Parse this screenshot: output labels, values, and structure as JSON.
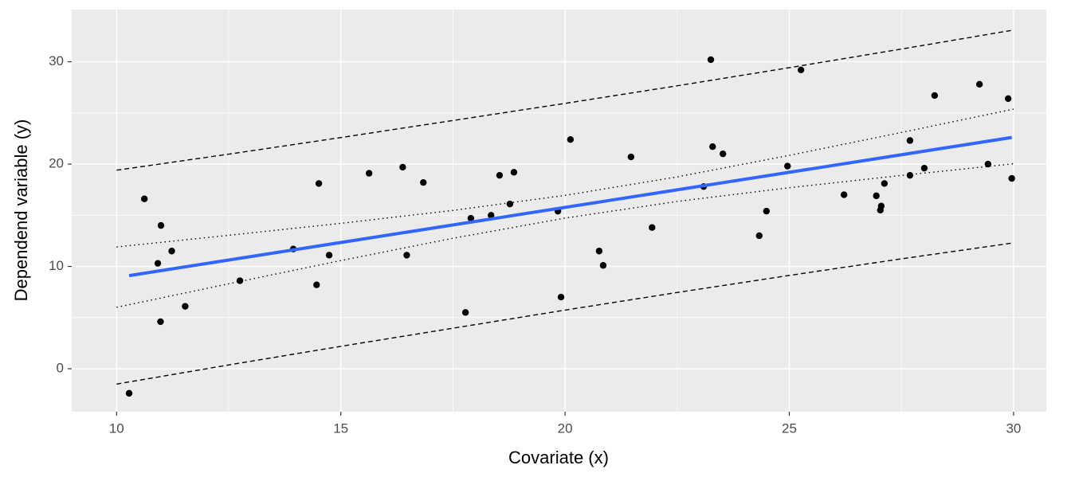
{
  "chart_data": {
    "type": "scatter",
    "x_label": "Covariate (x)",
    "y_label": "Dependend variable (y)",
    "xlim": [
      9.0,
      30.73
    ],
    "ylim": [
      -4.2,
      35.1
    ],
    "xticks": [
      10,
      15,
      20,
      25,
      30
    ],
    "yticks": [
      0,
      10,
      20,
      30
    ],
    "minor_xticks": [
      12.5,
      17.5,
      22.5,
      27.5
    ],
    "minor_yticks": [
      5,
      15,
      25
    ],
    "grid": true,
    "background": "#ebebeb",
    "color": "#000000",
    "x": [
      10.28,
      10.62,
      10.92,
      10.99,
      10.98,
      11.23,
      11.53,
      12.75,
      13.94,
      14.46,
      14.51,
      14.74,
      15.63,
      16.38,
      16.47,
      16.84,
      17.78,
      17.9,
      18.35,
      18.54,
      18.77,
      18.86,
      19.84,
      19.91,
      20.12,
      20.76,
      20.85,
      21.47,
      21.94,
      23.09,
      23.25,
      23.29,
      23.52,
      24.33,
      24.49,
      24.96,
      25.26,
      26.22,
      26.94,
      27.03,
      27.05,
      27.12,
      27.69,
      27.69,
      28.01,
      28.24,
      29.24,
      29.43,
      29.88,
      29.96
    ],
    "y": [
      -2.4,
      16.6,
      10.3,
      14.0,
      4.6,
      11.5,
      6.1,
      8.6,
      11.7,
      8.2,
      18.1,
      11.1,
      19.1,
      19.7,
      11.1,
      18.2,
      5.5,
      14.7,
      15.0,
      18.9,
      16.1,
      19.2,
      15.4,
      7.0,
      22.4,
      11.5,
      10.1,
      20.7,
      13.8,
      17.8,
      30.2,
      21.7,
      21.0,
      13.0,
      15.4,
      19.8,
      29.2,
      17.0,
      16.9,
      15.5,
      15.9,
      18.1,
      22.3,
      18.9,
      19.6,
      26.7,
      27.8,
      20.0,
      26.4,
      18.6
    ],
    "fit": {
      "x": [
        10.28,
        29.96
      ],
      "y": [
        9.1,
        22.6
      ],
      "color": "#3366ff"
    },
    "confidence_band": {
      "x": [
        10,
        12.5,
        15,
        17.5,
        20,
        22.5,
        25,
        27.5,
        30
      ],
      "upper": [
        11.9,
        13.04,
        14.21,
        15.47,
        16.94,
        18.75,
        20.85,
        23.09,
        25.37
      ],
      "lower": [
        6.0,
        8.3,
        10.57,
        12.75,
        14.72,
        16.35,
        17.69,
        18.89,
        20.03
      ]
    },
    "prediction_band": {
      "x": [
        10,
        12.5,
        15,
        17.5,
        20,
        22.5,
        25,
        27.5,
        30
      ],
      "upper": [
        19.4,
        20.97,
        22.59,
        24.26,
        25.93,
        27.65,
        29.42,
        31.24,
        33.1
      ],
      "lower": [
        -1.5,
        0.37,
        2.19,
        3.96,
        5.73,
        7.45,
        9.12,
        10.74,
        12.3
      ]
    }
  }
}
